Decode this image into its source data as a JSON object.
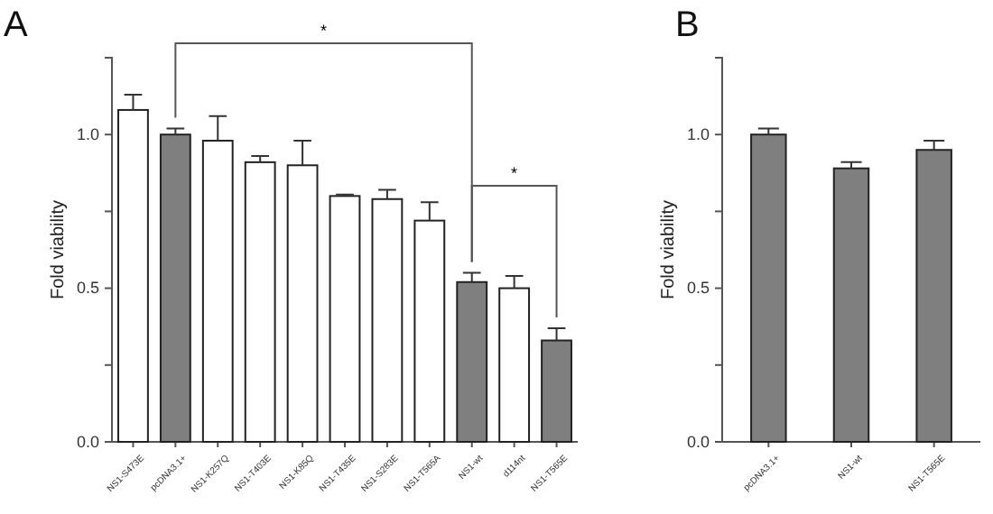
{
  "chart_data": [
    {
      "type": "bar",
      "title": "A",
      "ylabel": "Fold viability",
      "categories": [
        "NS1-S473E",
        "pcDNA3.1+",
        "NS1-K257Q",
        "NS1-T403E",
        "NS1-K85Q",
        "NS1-T435E",
        "NS1-S283E",
        "NS1-T565A",
        "NS1-wt",
        "d114nt",
        "NS1-T565E"
      ],
      "values": [
        1.08,
        1.0,
        0.98,
        0.91,
        0.9,
        0.8,
        0.79,
        0.72,
        0.52,
        0.5,
        0.33
      ],
      "errors": [
        [
          1.08,
          1.13
        ],
        [
          1.0,
          1.02
        ],
        [
          0.98,
          1.06
        ],
        [
          0.91,
          0.93
        ],
        [
          0.9,
          0.98
        ],
        [
          0.8,
          0.805
        ],
        [
          0.79,
          0.82
        ],
        [
          0.72,
          0.78
        ],
        [
          0.52,
          0.55
        ],
        [
          0.5,
          0.54
        ],
        [
          0.33,
          0.37
        ]
      ],
      "colors": [
        "#ffffff",
        "#7f7f7f",
        "#ffffff",
        "#ffffff",
        "#ffffff",
        "#ffffff",
        "#ffffff",
        "#ffffff",
        "#7f7f7f",
        "#ffffff",
        "#7f7f7f"
      ],
      "ylim": [
        0,
        1.25
      ],
      "yticks": [
        {
          "value": 0,
          "label": "0.0"
        },
        {
          "value": 0.25,
          "label": null
        },
        0.5,
        {
          "value": 0.75,
          "label": null
        },
        {
          "value": 1,
          "label": "1.0"
        }
      ],
      "annotations": [
        "*",
        "*"
      ],
      "grid": false
    },
    {
      "type": "bar",
      "title": "B",
      "ylabel": "Fold viability",
      "categories": [
        "pcDNA3.1+",
        "NS1-wt",
        "NS1-T565E"
      ],
      "values": [
        1.0,
        0.89,
        0.95
      ],
      "errors": [
        [
          1.0,
          1.02
        ],
        [
          0.89,
          0.91
        ],
        [
          0.95,
          0.98
        ]
      ],
      "colors": [
        "#7f7f7f",
        "#7f7f7f",
        "#7f7f7f"
      ],
      "ylim": [
        0,
        1.25
      ],
      "yticks": [
        {
          "value": 0,
          "label": "0.0"
        },
        {
          "value": 0.25,
          "label": null
        },
        0.5,
        {
          "value": 0.75,
          "label": null
        },
        {
          "value": 1,
          "label": "1.0"
        }
      ],
      "grid": false
    }
  ]
}
